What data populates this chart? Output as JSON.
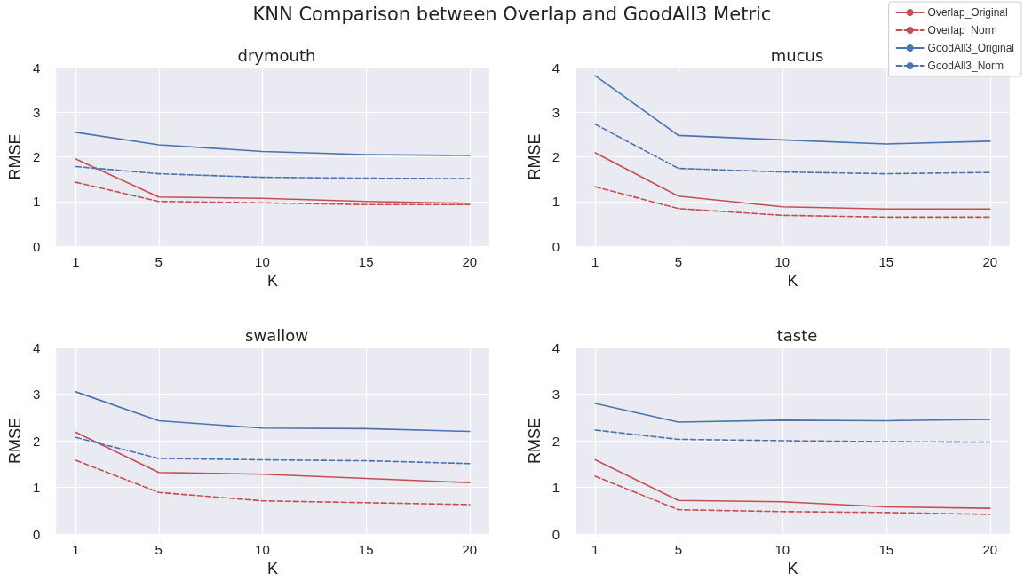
{
  "chart_data": [
    {
      "type": "line",
      "title": "drymouth",
      "xlabel": "K",
      "ylabel": "RMSE",
      "annotations": [
        "KNN Comparison between Overlap and GoodAll3 Metric"
      ],
      "x": [
        1,
        5,
        10,
        15,
        20
      ],
      "xlim": [
        0.05,
        20.95
      ],
      "xticks": [
        1,
        5,
        10,
        15,
        20
      ],
      "ylim": [
        0,
        4
      ],
      "yticks": [
        0,
        1,
        2,
        3,
        4
      ],
      "grid": true,
      "marker": "none",
      "legend": false,
      "series": [
        {
          "color": "#c44e52",
          "line_style": "solid",
          "values": [
            1.95,
            1.1,
            1.07,
            1.0,
            0.96
          ]
        },
        {
          "color": "#c44e52",
          "line_style": "dashed",
          "values": [
            1.43,
            1.0,
            0.97,
            0.93,
            0.93
          ]
        },
        {
          "color": "#4c72b0",
          "line_style": "solid",
          "values": [
            2.55,
            2.27,
            2.12,
            2.05,
            2.03
          ]
        },
        {
          "color": "#4c72b0",
          "line_style": "dashed",
          "values": [
            1.78,
            1.62,
            1.54,
            1.52,
            1.51
          ]
        }
      ]
    },
    {
      "type": "line",
      "title": "mucus",
      "xlabel": "K",
      "ylabel": "RMSE",
      "x": [
        1,
        5,
        10,
        15,
        20
      ],
      "xlim": [
        0.05,
        20.95
      ],
      "xticks": [
        1,
        5,
        10,
        15,
        20
      ],
      "ylim": [
        0,
        4
      ],
      "yticks": [
        0,
        1,
        2,
        3,
        4
      ],
      "grid": true,
      "marker": "none",
      "legend": "top right",
      "series": [
        {
          "name": "Overlap_Original",
          "color": "#c44e52",
          "line_style": "solid",
          "values": [
            2.09,
            1.12,
            0.88,
            0.83,
            0.83
          ]
        },
        {
          "name": "Overlap_Norm",
          "color": "#c44e52",
          "line_style": "dashed",
          "values": [
            1.33,
            0.84,
            0.69,
            0.65,
            0.65
          ]
        },
        {
          "name": "GoodAll3_Original",
          "color": "#4c72b0",
          "line_style": "solid",
          "values": [
            3.82,
            2.48,
            2.38,
            2.29,
            2.35
          ]
        },
        {
          "name": "GoodAll3_Norm",
          "color": "#4c72b0",
          "line_style": "dashed",
          "values": [
            2.73,
            1.74,
            1.66,
            1.62,
            1.65
          ]
        }
      ]
    },
    {
      "type": "line",
      "title": "swallow",
      "xlabel": "K",
      "ylabel": "RMSE",
      "x": [
        1,
        5,
        10,
        15,
        20
      ],
      "xlim": [
        0.05,
        20.95
      ],
      "xticks": [
        1,
        5,
        10,
        15,
        20
      ],
      "ylim": [
        0,
        4
      ],
      "yticks": [
        0,
        1,
        2,
        3,
        4
      ],
      "grid": true,
      "marker": "none",
      "legend": false,
      "series": [
        {
          "color": "#c44e52",
          "line_style": "solid",
          "values": [
            2.18,
            1.32,
            1.28,
            1.19,
            1.1
          ]
        },
        {
          "color": "#c44e52",
          "line_style": "dashed",
          "values": [
            1.58,
            0.89,
            0.71,
            0.67,
            0.63
          ]
        },
        {
          "color": "#4c72b0",
          "line_style": "solid",
          "values": [
            3.05,
            2.43,
            2.27,
            2.26,
            2.2
          ]
        },
        {
          "color": "#4c72b0",
          "line_style": "dashed",
          "values": [
            2.07,
            1.62,
            1.59,
            1.57,
            1.51
          ]
        }
      ]
    },
    {
      "type": "line",
      "title": "taste",
      "xlabel": "K",
      "ylabel": "RMSE",
      "x": [
        1,
        5,
        10,
        15,
        20
      ],
      "xlim": [
        0.05,
        20.95
      ],
      "xticks": [
        1,
        5,
        10,
        15,
        20
      ],
      "ylim": [
        0,
        4
      ],
      "yticks": [
        0,
        1,
        2,
        3,
        4
      ],
      "grid": true,
      "marker": "none",
      "legend": false,
      "series": [
        {
          "color": "#c44e52",
          "line_style": "solid",
          "values": [
            1.59,
            0.72,
            0.69,
            0.58,
            0.55
          ]
        },
        {
          "color": "#c44e52",
          "line_style": "dashed",
          "values": [
            1.24,
            0.52,
            0.48,
            0.46,
            0.42
          ]
        },
        {
          "color": "#4c72b0",
          "line_style": "solid",
          "values": [
            2.8,
            2.4,
            2.44,
            2.43,
            2.46
          ]
        },
        {
          "color": "#4c72b0",
          "line_style": "dashed",
          "values": [
            2.23,
            2.03,
            2.0,
            1.98,
            1.97
          ]
        }
      ]
    }
  ]
}
